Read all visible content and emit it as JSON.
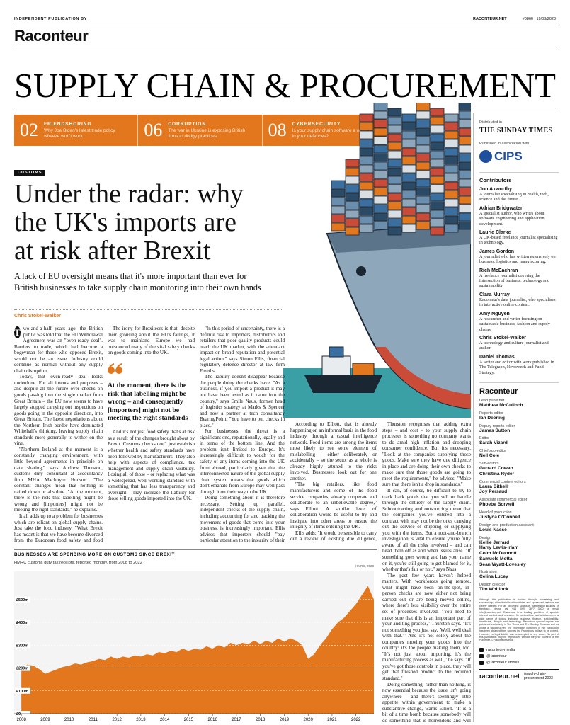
{
  "header": {
    "publisher_note": "INDEPENDENT PUBLICATION BY",
    "logo": "Raconteur",
    "site": "RACONTEUR.NET",
    "issue": "#0860 | 19/03/2023"
  },
  "section_title": "SUPPLY CHAIN & PROCUREMENT",
  "teasers": [
    {
      "number": "02",
      "label": "FRIENDSHORING",
      "text": "Why Joe Biden's latest trade policy wheeze won't work"
    },
    {
      "number": "06",
      "label": "CORRUPTION",
      "text": "The war in Ukraine is exposing British firms to dodgy practices"
    },
    {
      "number": "08",
      "label": "CYBERSECURITY",
      "text": "Is your supply chain software a weak link in your defences?"
    }
  ],
  "article": {
    "tag": "CUSTOMS",
    "headline_lines": [
      "Under the radar: why",
      "the UK's imports are",
      "at risk after Brexit"
    ],
    "standfirst_lines": [
      "A lack of EU oversight means that it's more important than ever for",
      "British businesses to take supply chain monitoring into their own hands"
    ],
    "byline": "Chris Stokel-Walker",
    "pull_quote": "At the moment, there is the risk that labelling might be wrong – and consequently [importers] might not be meeting the right standards",
    "columns": [
      [
        "Two-and-a-half years ago, the British public was told that the EU Withdrawal Agreement was an \"oven-ready deal\". Barriers to trade, which had become a bogeyman for those who opposed Brexit, would not be an issue. Industry could continue as normal without any supply chain disruption.",
        "Today, that oven-ready deal looks underdone. For all intents and purposes – and despite all the furore over checks on goods passing into the single market from Great Britain – the EU now seems to have largely stopped carrying out inspections on goods going in the opposite direction, into Great Britain. The latest negotiations about the Northern Irish border have dominated Whitehall's thinking, leaving supply chain standards more generally to wither on the vine.",
        "\"Northern Ireland at the moment is a constantly changing environment, with little beyond agreements in principle on data sharing,\" says Andrew Thurston, customs duty consultant at accountancy firm MHA MacIntyre Hudson. \"The constant changes mean that nothing is nailed down or absolute. \"At the moment, there is the risk that labelling might be wrong and [importers] might not be meeting the right standards,\" he explains.",
        "It all adds up to a problem for businesses which are reliant on global supply chains. Just take the food industry. \"What Brexit has meant is that we have become divorced from the European food safety and food fraud monitoring systems,\" says Chris Elliott, professor at the Institute for Global Food Security at Queen's University Belfast."
      ],
      [
        "The irony for Brexiteers is that, despite their grousing about the EU's failings, it was to mainland Europe we had outsourced many of the vital safety checks on goods coming into the UK.",
        "And it's not just food safety that's at risk as a result of the changes brought about by Brexit. Customs checks don't just establish whether health and safety standards have been followed by manufacturers. They also help with aspects of compliance, tax management and supply chain visibility. Losing all of those – or replacing what was a widespread, well-working standard with something that has less transparency and oversight – may increase the liability for those selling goods imported into the UK."
      ],
      [
        "\"In this period of uncertainty, there is a definite risk to importers, distributors and retailers that poor-quality products could reach the UK market, with the attendant impact on brand reputation and potential legal action,\" says Simon Ellis, financial regulatory defence director at law firm Freeths.",
        "The liability doesn't disappear because the people doing the checks have. \"As a business, if you import a product it may not have been tested as it came into the country,\" says Emile Naus, former head of logistics strategy at Marks & Spencer and now a partner at tech consultancy BearingPoint. \"You have to put checks in place.\"",
        "For businesses, the threat is a significant one, reputationally, legally and in terms of the bottom line. And the problem isn't limited to Europe. It's increasingly difficult to vouch for the safety of any items coming into the UK from abroad, particularly given that the interconnected nature of the global supply chain system means that goods which don't emanate from Europe may well pass through it on their way to the UK.",
        "Doing something about it is therefore necessary. Setting up parallel, independent checks of the supply chain, including accounting for and tracking the movement of goods that come into your business, is increasingly important. Ellis advises that importers should \"pay particular attention to the integrity of their supply chains to ensure that supplies originate from trusted sources which have a reliable history of compliance\". That requires due diligence checks throughout the entire supply chain – \"as commercial sensitivities permit\"."
      ],
      [
        "According to Elliott, that is already happening on an informal basis in the food industry, through a casual intelligence network. Food items are among the items most likely to see some element of mislabelling – either deliberately or accidentally – so the sector as a whole is already highly attuned to the risks involved. Businesses look out for one another.",
        "\"The big retailers, like food manufacturers and some of the food service companies, already cooperate and collaborate to an unbelievable degree,\" says Elliott. A similar level of collaboration would be useful to try and instigate into other areas to ensure the integrity of items entering the UK.",
        "Ellis adds: \"It would be sensible to carry out a review of existing due diligence, with a particular emphasis on the credibility of recent market entrants, the viability of pricing by suppliers and their warehousing and logistic operations.\""
      ],
      [
        "Thurston recognises that adding extra steps – and cost – to your supply chain processes is something no company wants to do amid high inflation and dropping consumer confidence. But it's necessary. \"Look at the companies supplying those goods. Make sure they have due diligence in place and are doing their own checks to make sure that those goods are going to meet the requirements,\" he advises. \"Make sure that there isn't a drop in standards.\"",
        "It can, of course, be difficult to try to track back goods that you sell or handle through the entirety of the supply chain. Subcontracting and outsourcing mean that the companies you've entered into a contract with may not be the ones carrying out the service of shipping or supplying you with the items. But a root-and-branch investigation is vital to ensure you're fully aware of all the risks involved – and can head them off as and when issues arise. \"If something goes wrong and has your name on it, you're still going to get blamed for it, whether that's fair or not,\" says Naus.",
        "The past few years haven't helped matters. With workforces going remote, what might have been on-the-spot, in-person checks are now either not being carried out or are being moved online, where there's less visibility over the entire set of processes involved. \"You need to make sure that this is an important part of your auditing process,\" Thurston says. \"It's not something you just say, 'Well, well deal with that.'\" And it's not solely about the companies moving your goods into the country: it's the people making them, too. \"It's not just about importing, it's the manufacturing process as well,\" he says. \"If you've got those controls in place, they will get that finished product to the required standard.\"",
        "Doing something, rather than nothing, is now essential because the issue isn't going anywhere – and there's seemingly little appetite within government to make a substantive change, warns Elliott. \"It is a bit of a time bomb because somebody will do something that is horrendous and will jeopardise the health – if not the lives – of some people,\" he says."
      ]
    ]
  },
  "chart_data": {
    "type": "area",
    "title": "BUSINESSES ARE SPENDING MORE ON CUSTOMS SINCE BREXIT",
    "subtitle": "HMRC customs duty tax receipts, reported monthly, from 2008 to 2022",
    "source": "HMRC, 2023",
    "color": "#e3771d",
    "x": [
      2008,
      2008.25,
      2008.5,
      2008.75,
      2009,
      2009.25,
      2009.5,
      2009.75,
      2010,
      2010.25,
      2010.5,
      2010.75,
      2011,
      2011.25,
      2011.5,
      2011.75,
      2012,
      2012.25,
      2012.5,
      2012.75,
      2013,
      2013.25,
      2013.5,
      2013.75,
      2014,
      2014.25,
      2014.5,
      2014.75,
      2015,
      2015.25,
      2015.5,
      2015.75,
      2016,
      2016.25,
      2016.5,
      2016.75,
      2017,
      2017.25,
      2017.5,
      2017.75,
      2018,
      2018.25,
      2018.5,
      2018.75,
      2019,
      2019.25,
      2019.5,
      2019.75,
      2020,
      2020.25,
      2020.5,
      2020.75,
      2021,
      2021.25,
      2021.5,
      2021.75,
      2022,
      2022.25,
      2022.5,
      2022.75
    ],
    "values": [
      200,
      215,
      210,
      195,
      175,
      185,
      195,
      205,
      210,
      220,
      215,
      225,
      230,
      240,
      235,
      250,
      240,
      250,
      245,
      255,
      250,
      260,
      255,
      270,
      265,
      275,
      270,
      285,
      275,
      285,
      280,
      295,
      285,
      300,
      290,
      310,
      300,
      310,
      305,
      320,
      305,
      320,
      310,
      330,
      315,
      330,
      320,
      300,
      240,
      260,
      300,
      330,
      370,
      400,
      420,
      450,
      480,
      520,
      560,
      500
    ],
    "xlim": [
      2007.7,
      2022.75
    ],
    "xticks": [
      2008,
      2009,
      2010,
      2011,
      2012,
      2013,
      2014,
      2015,
      2016,
      2017,
      2018,
      2019,
      2020,
      2021,
      2022
    ],
    "ylim": [
      0,
      580
    ],
    "yticks": [
      {
        "value": 0,
        "label": "£0"
      },
      {
        "value": 100,
        "label": "£100m"
      },
      {
        "value": 200,
        "label": "£200m"
      },
      {
        "value": 300,
        "label": "£300m"
      },
      {
        "value": 400,
        "label": "£400m"
      },
      {
        "value": 500,
        "label": "£500m"
      }
    ],
    "grid": true
  },
  "sidebar": {
    "distributed_label": "Distributed in",
    "distributor": "THE SUNDAY TIMES",
    "association_label": "Published in association with",
    "partner": "CIPS",
    "contributors_title": "Contributors",
    "contributors": [
      {
        "name": "Jon Axworthy",
        "bio": "A journalist specialising in health, tech, science and the future."
      },
      {
        "name": "Adrian Bridgwater",
        "bio": "A specialist author, who writes about software engineering and application development."
      },
      {
        "name": "Laurie Clarke",
        "bio": "A UK-based freelance journalist specialising in technology."
      },
      {
        "name": "James Gordon",
        "bio": "A journalist who has written extensively on business, logistics and manufacturing."
      },
      {
        "name": "Rich McEachran",
        "bio": "A freelance journalist covering the intersection of business, technology and sustainability."
      },
      {
        "name": "Clara Murray",
        "bio": "Raconteur's data journalist, who specialises in interactive online content."
      },
      {
        "name": "Amy Nguyen",
        "bio": "A researcher and writer focusing on sustainable business, fashion and supply chains."
      },
      {
        "name": "Chris Stokel-Walker",
        "bio": "A technology and culture journalist and author."
      },
      {
        "name": "Daniel Thomas",
        "bio": "A writer and editor with work published in The Telegraph, Newsweek and Fund Strategy."
      }
    ],
    "logo": "Raconteur",
    "staff": [
      {
        "role": "Lead publisher",
        "names": [
          "Matthew McCulloch"
        ]
      },
      {
        "role": "Reports editor",
        "names": [
          "Ian Deering"
        ]
      },
      {
        "role": "Deputy reports editor",
        "names": [
          "James Sutton"
        ]
      },
      {
        "role": "Editor",
        "names": [
          "Sarah Vizard"
        ]
      },
      {
        "role": "Chief sub-editor",
        "names": [
          "Neil Cole"
        ]
      },
      {
        "role": "Sub-editors",
        "names": [
          "Gerrard Cowan",
          "Christina Ryder"
        ]
      },
      {
        "role": "Commercial content editors",
        "names": [
          "Laura Bithell",
          "Joy Persaud"
        ]
      },
      {
        "role": "Associate commercial editor",
        "names": [
          "Phoebe Borwell"
        ]
      },
      {
        "role": "Head of production",
        "names": [
          "Justyna O'Connell"
        ]
      },
      {
        "role": "Design and production assistant",
        "names": [
          "Louis Nassé"
        ]
      },
      {
        "role": "Design",
        "names": [
          "Kellie Jerrard",
          "Harry Lewis-Irlam",
          "Colm McDermott",
          "Samuele Motta",
          "Sean Wyatt-Lovesley"
        ]
      },
      {
        "role": "Illustration",
        "names": [
          "Celina Lucey"
        ]
      },
      {
        "role": "Design director",
        "names": [
          "Tim Whitlock"
        ]
      }
    ],
    "small_print": "Although this publication is funded through advertising and sponsorship, all editorial is without bias and sponsored features are clearly labelled. For an upcoming schedule, partnership inquiries or feedback, please call +44 (0)20 3877 3800 or email info@raconteur.net. Raconteur is a leading publisher of special-interest content and research. Its publications and articles cover a wide range of topics, including business, finance, sustainability, healthcare, lifestyle and technology. Raconteur special reports are published exclusively in The Times and The Sunday Times as well as online at raconteur.net. The information contained in this publication has been obtained from sources the Proprietors believe to be correct. However, no legal liability can be accepted for any errors. No part of this publication may be reproduced without the prior consent of the Publisher. © Raconteur Media",
    "social": [
      "raconteur-media",
      "@raconteur",
      "@raconteur.stories"
    ],
    "footer_site": "raconteur.net",
    "footer_path": "/supply-chain-procurement-2023"
  }
}
